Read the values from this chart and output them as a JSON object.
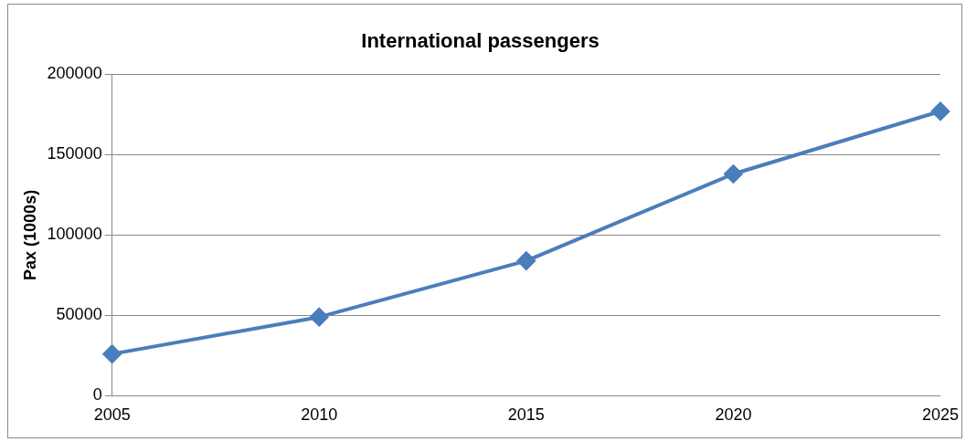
{
  "chart_data": {
    "type": "line",
    "title": "International passengers",
    "ylabel": "Pax (1000s)",
    "categories": [
      "2005",
      "2010",
      "2015",
      "2020",
      "2025"
    ],
    "series": [
      {
        "color": "#4a7ebb",
        "values": [
          26000,
          49000,
          84000,
          138000,
          177000
        ]
      }
    ],
    "ylim": [
      0,
      200000
    ],
    "yticks": [
      0,
      50000,
      100000,
      150000,
      200000
    ],
    "grid": "y",
    "legend": false,
    "marker": "diamond",
    "line_style": "solid"
  }
}
